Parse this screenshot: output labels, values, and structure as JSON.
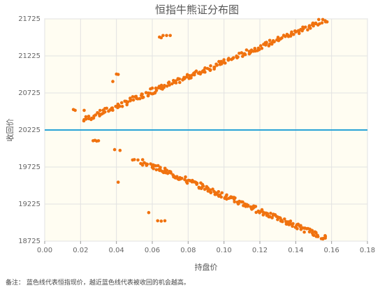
{
  "chart_data": {
    "type": "scatter",
    "title": "恒指牛熊证分布图",
    "xlabel": "持盘价",
    "ylabel": "收回价",
    "xlim": [
      0,
      0.18
    ],
    "ylim": [
      18725,
      21725
    ],
    "x_ticks": [
      "0.00",
      "0.02",
      "0.04",
      "0.06",
      "0.08",
      "0.10",
      "0.12",
      "0.14",
      "0.16",
      "0.18"
    ],
    "y_ticks": [
      "18725",
      "19225",
      "19725",
      "20225",
      "20725",
      "21225",
      "21725"
    ],
    "reference_line": {
      "y": 20225,
      "color": "#29a3d6"
    },
    "point_color": "#f0720f",
    "plot_background": "#fffdf2",
    "grid": true,
    "bull_band": {
      "x_start": 0.022,
      "y_start": 20360,
      "x_end": 0.158,
      "y_end": 21725
    },
    "bear_band": {
      "x_start": 0.054,
      "y_start": 19800,
      "x_end": 0.157,
      "y_end": 18760
    },
    "outliers": [
      {
        "x": 0.016,
        "y": 20500
      },
      {
        "x": 0.017,
        "y": 20490
      },
      {
        "x": 0.022,
        "y": 20490
      },
      {
        "x": 0.038,
        "y": 20880
      },
      {
        "x": 0.04,
        "y": 20980
      },
      {
        "x": 0.041,
        "y": 20975
      },
      {
        "x": 0.059,
        "y": 20780
      },
      {
        "x": 0.06,
        "y": 20790
      },
      {
        "x": 0.062,
        "y": 20790
      },
      {
        "x": 0.064,
        "y": 21480
      },
      {
        "x": 0.065,
        "y": 21470
      },
      {
        "x": 0.066,
        "y": 21500
      },
      {
        "x": 0.068,
        "y": 21500
      },
      {
        "x": 0.07,
        "y": 21500
      },
      {
        "x": 0.027,
        "y": 20080
      },
      {
        "x": 0.028,
        "y": 20085
      },
      {
        "x": 0.029,
        "y": 20075
      },
      {
        "x": 0.03,
        "y": 20080
      },
      {
        "x": 0.039,
        "y": 19960
      },
      {
        "x": 0.042,
        "y": 19950
      },
      {
        "x": 0.049,
        "y": 19820
      },
      {
        "x": 0.05,
        "y": 19825
      },
      {
        "x": 0.052,
        "y": 19820
      },
      {
        "x": 0.041,
        "y": 19520
      },
      {
        "x": 0.058,
        "y": 19110
      },
      {
        "x": 0.063,
        "y": 19000
      },
      {
        "x": 0.065,
        "y": 18995
      },
      {
        "x": 0.067,
        "y": 19000
      }
    ]
  },
  "note": "备注：  蓝色线代表恒指现价，越近蓝色线代表被收回的机会越高。"
}
